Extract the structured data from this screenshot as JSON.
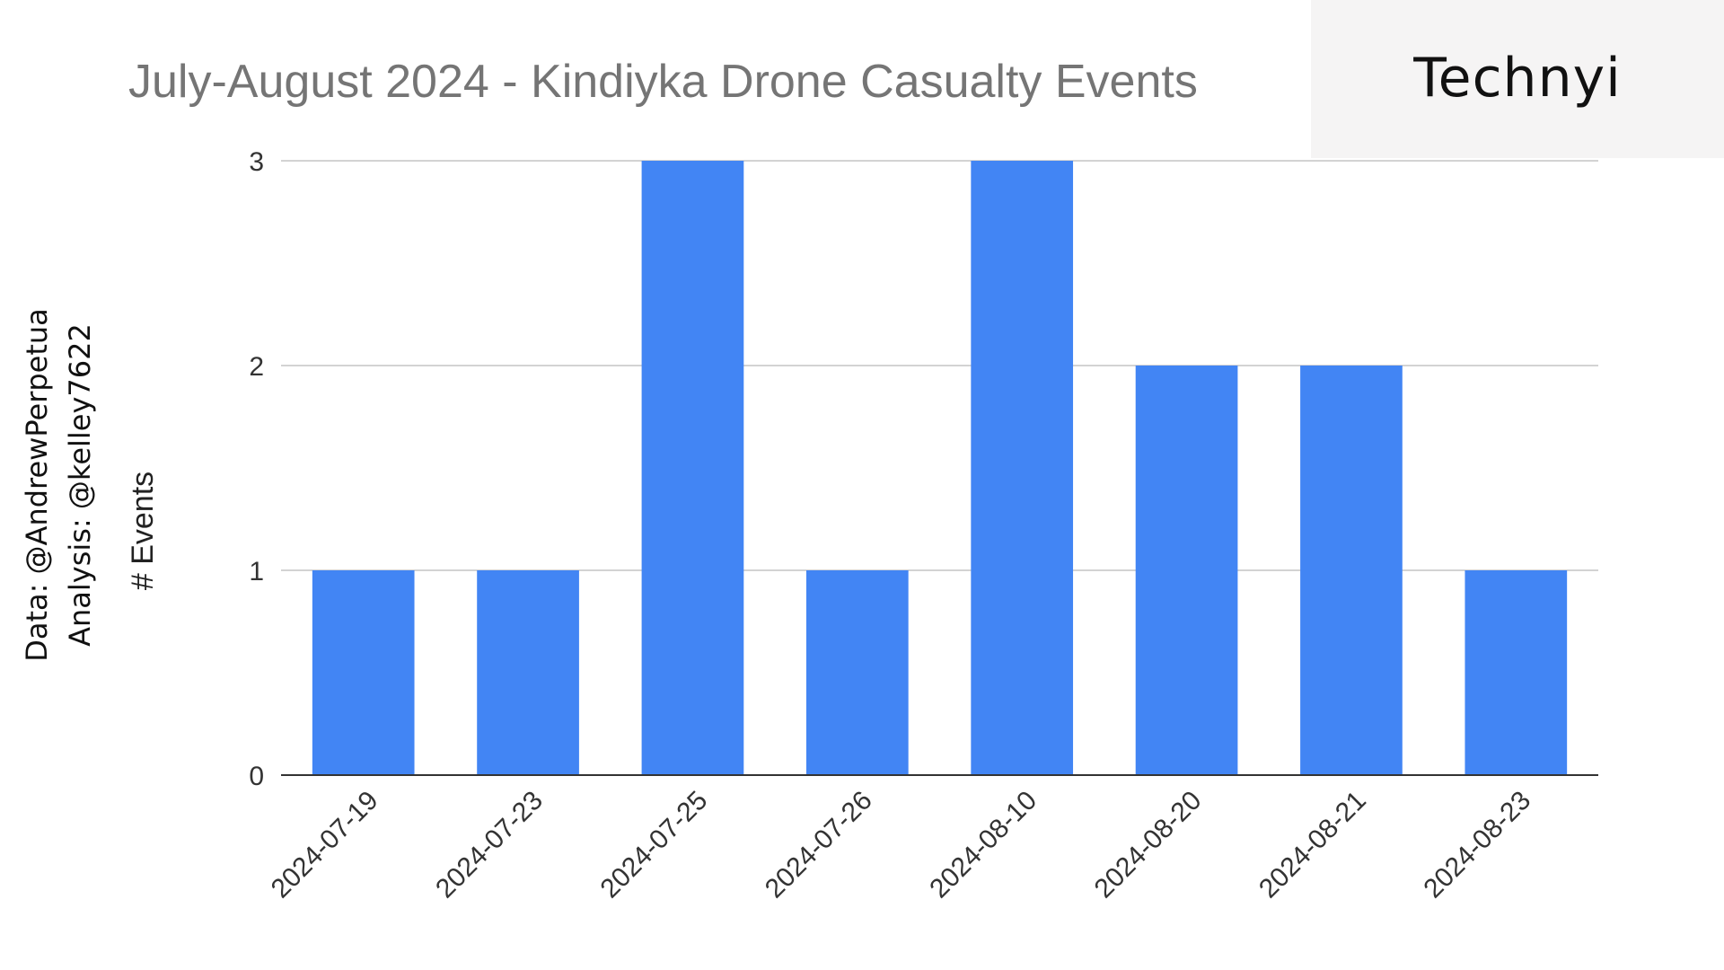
{
  "chart_data": {
    "type": "bar",
    "title": "July-August 2024 - Kindiyka Drone Casualty Events",
    "xlabel": "",
    "ylabel": "# Events",
    "categories": [
      "2024-07-19",
      "2024-07-23",
      "2024-07-25",
      "2024-07-26",
      "2024-08-10",
      "2024-08-20",
      "2024-08-21",
      "2024-08-23"
    ],
    "values": [
      1,
      1,
      3,
      1,
      3,
      2,
      2,
      1
    ],
    "ylim": [
      0,
      3
    ],
    "yticks": [
      0,
      1,
      2,
      3
    ],
    "grid": true,
    "legend": "none",
    "bar_color": "#4285f4"
  },
  "credits": {
    "data_line": "Data: @AndrewPerpetua",
    "analysis_line": "Analysis: @kelley7622"
  },
  "logo": {
    "text": "Technyi",
    "accent_color": "#1a73e8",
    "accent2_color": "#f6c700"
  }
}
